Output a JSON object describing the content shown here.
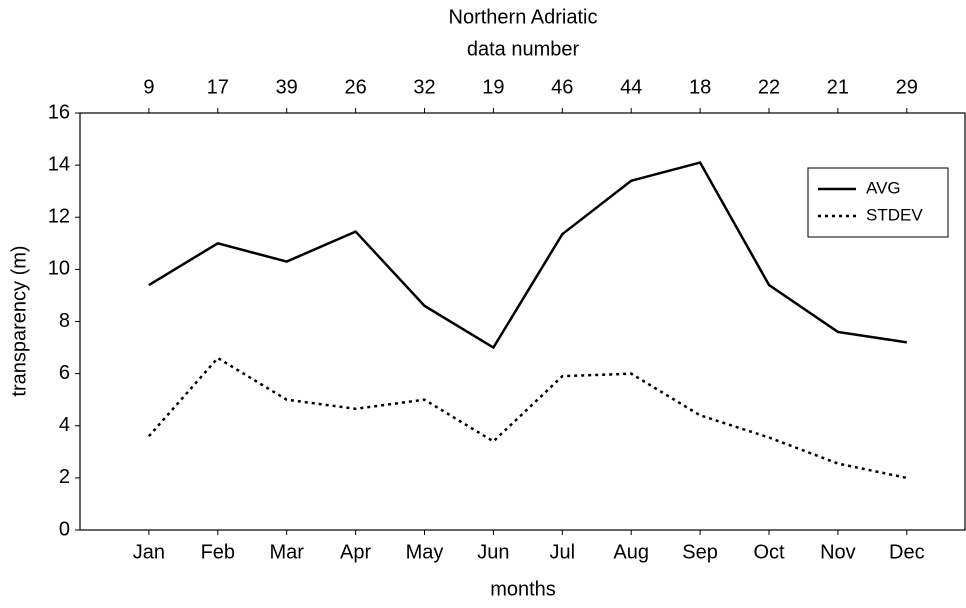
{
  "chart_data": {
    "type": "line",
    "title": "Northern Adriatic",
    "top_axis_label": "data number",
    "top_labels": [
      9,
      17,
      39,
      26,
      32,
      19,
      46,
      44,
      18,
      22,
      21,
      29
    ],
    "x_label": "months",
    "y_label": "transparency (m)",
    "categories": [
      "Jan",
      "Feb",
      "Mar",
      "Apr",
      "May",
      "Jun",
      "Jul",
      "Aug",
      "Sep",
      "Oct",
      "Nov",
      "Dec"
    ],
    "series": [
      {
        "name": "AVG",
        "color": "#000000",
        "linestyle": "solid",
        "values": [
          9.4,
          11.0,
          10.3,
          11.45,
          8.6,
          7.0,
          11.35,
          13.4,
          14.1,
          9.4,
          7.6,
          7.2
        ]
      },
      {
        "name": "STDEV",
        "color": "#000000",
        "linestyle": "dotted",
        "values": [
          3.6,
          6.6,
          5.0,
          4.65,
          5.0,
          3.4,
          5.9,
          6.0,
          4.4,
          3.55,
          2.55,
          2.0
        ]
      }
    ],
    "ylim": [
      0,
      16
    ],
    "yticks": [
      0,
      2,
      4,
      6,
      8,
      10,
      12,
      14,
      16
    ],
    "grid": false,
    "legend": "upper right"
  }
}
